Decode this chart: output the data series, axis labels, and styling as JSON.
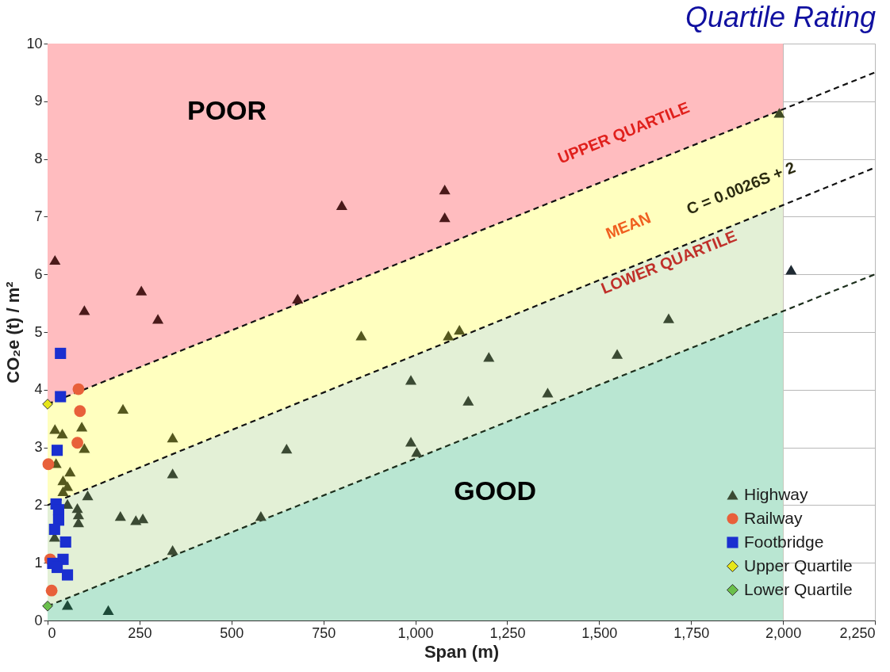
{
  "chart_data": {
    "type": "scatter",
    "title": "Quartile Rating",
    "xlabel": "Span (m)",
    "ylabel": "CO₂e (t) / m²",
    "xlim": [
      0,
      2250
    ],
    "ylim": [
      0,
      10
    ],
    "xticks": [
      0,
      250,
      500,
      750,
      {
        "value": 1000,
        "label": "1,000"
      },
      {
        "value": 1250,
        "label": "1,250"
      },
      {
        "value": 1500,
        "label": "1,500"
      },
      {
        "value": 1750,
        "label": "1,750"
      },
      {
        "value": 2000,
        "label": "2,000"
      },
      {
        "value": 2250,
        "label": "2,250"
      }
    ],
    "yticks": [
      0,
      1,
      2,
      3,
      4,
      5,
      6,
      7,
      8,
      9,
      10
    ],
    "grid": true,
    "legend": "bottom right",
    "annotations": [
      "POOR",
      "GOOD",
      "UPPER QUARTILE",
      "MEAN",
      "C = 0.0026S + 2",
      "LOWER QUARTILE"
    ],
    "series": [
      {
        "type": "area",
        "color": "#ffbcbf",
        "x": [
          0,
          2000
        ],
        "values": [
          10,
          10
        ]
      },
      {
        "type": "area",
        "color": "#ffffbf",
        "x": [
          0,
          2000
        ],
        "values": [
          3.75,
          8.86
        ]
      },
      {
        "type": "area",
        "color": "#e3f0d6",
        "x": [
          0,
          2000
        ],
        "values": [
          2,
          7.2
        ]
      },
      {
        "type": "area",
        "color": "#b9e6d2",
        "x": [
          0,
          2000
        ],
        "values": [
          0.25,
          5.36
        ]
      },
      {
        "type": "line",
        "line_style": "dashed",
        "color": "#111111",
        "x": [
          0,
          2250
        ],
        "values": [
          3.75,
          9.5
        ]
      },
      {
        "type": "line",
        "line_style": "dashed",
        "color": "#111111",
        "x": [
          0,
          2250
        ],
        "values": [
          2,
          7.85
        ]
      },
      {
        "type": "line",
        "line_style": "dashed",
        "color": "#1c2e1c",
        "x": [
          0,
          2250
        ],
        "values": [
          0.25,
          6.0
        ]
      },
      {
        "name": "Highway",
        "marker": "triangle",
        "color": "#3b4a33",
        "x": [
          20,
          100,
          255,
          300,
          680,
          800,
          1080,
          1080,
          1990,
          2022,
          205,
          20,
          40,
          93,
          100,
          340,
          23,
          42,
          61,
          54,
          42,
          853,
          1090,
          1120,
          109,
          340,
          988,
          1200,
          1144,
          1360,
          1549,
          1689,
          650,
          988,
          1004,
          580,
          340,
          54,
          81,
          84,
          84,
          198,
          240,
          259,
          19,
          54,
          165
        ],
        "values": [
          6.25,
          5.38,
          5.72,
          5.23,
          5.58,
          7.2,
          7.47,
          6.99,
          8.8,
          6.08,
          3.67,
          3.32,
          3.24,
          3.36,
          2.99,
          3.17,
          2.73,
          2.43,
          2.58,
          2.33,
          2.24,
          4.94,
          4.94,
          5.04,
          2.17,
          2.55,
          4.17,
          4.57,
          3.81,
          3.95,
          4.62,
          5.24,
          2.98,
          3.1,
          2.92,
          1.81,
          1.22,
          2.02,
          1.95,
          1.84,
          1.7,
          1.81,
          1.74,
          1.77,
          1.45,
          0.27,
          0.18
        ],
        "colors": [
          "#4a1a1a",
          "#4a1a1a",
          "#4a1a1a",
          "#4a1a1a",
          "#4a1a1a",
          "#4a1a1a",
          "#4a1a1a",
          "#4a1a1a",
          "#3f4a25",
          "#1f2a33",
          "#55581e",
          "#55581e",
          "#55581e",
          "#55581e",
          "#55581e",
          "#55581e",
          "#55581e",
          "#55581e",
          "#55581e",
          "#55581e",
          "#55581e",
          "#55581e",
          "#55581e",
          "#55581e",
          "#3b4a33",
          "#3b4a33",
          "#3b4a33",
          "#3b4a33",
          "#3b4a33",
          "#3b4a33",
          "#3b4a33",
          "#3b4a33",
          "#3b4a33",
          "#3b4a33",
          "#3b4a33",
          "#3b4a33",
          "#3b4a33",
          "#3b4a33",
          "#3b4a33",
          "#3b4a33",
          "#3b4a33",
          "#3b4a33",
          "#3b4a33",
          "#3b4a33",
          "#3b4a33",
          "#1d4a38",
          "#1d4a38"
        ]
      },
      {
        "name": "Railway",
        "marker": "circle",
        "color": "#e8603a",
        "x": [
          84,
          88,
          81,
          2,
          7,
          11
        ],
        "values": [
          4.01,
          3.63,
          3.08,
          2.71,
          1.06,
          0.52
        ]
      },
      {
        "name": "Footbridge",
        "marker": "square",
        "color": "#1a2fd0",
        "x": [
          35,
          35,
          26,
          23,
          30,
          30,
          19,
          49,
          42,
          14,
          26,
          54
        ],
        "values": [
          4.63,
          3.88,
          2.95,
          2.02,
          1.92,
          1.74,
          1.58,
          1.36,
          1.06,
          0.99,
          0.92,
          0.79
        ]
      },
      {
        "name": "Upper Quartile",
        "marker": "diamond",
        "color": "#e6e619",
        "x": [
          0
        ],
        "values": [
          3.75
        ]
      },
      {
        "name": "Lower Quartile",
        "marker": "diamond",
        "color": "#6abf4b",
        "x": [
          0
        ],
        "values": [
          0.25
        ]
      }
    ]
  }
}
